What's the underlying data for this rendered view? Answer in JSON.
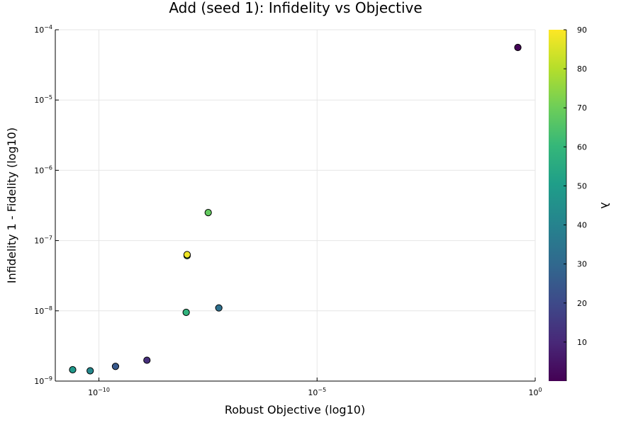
{
  "chart_data": {
    "type": "scatter",
    "title": "Add (seed 1): Infidelity vs Objective",
    "xlabel": "Robust Objective (log10)",
    "ylabel": "Infidelity 1 - Fidelity (log10)",
    "colorbar_label": "λ",
    "x_scale": "log10",
    "y_scale": "log10",
    "xlim_exp": [
      -11.0,
      0
    ],
    "ylim_exp": [
      -9,
      -4
    ],
    "x_ticks": [
      {
        "base": "10",
        "exp": "−10",
        "value": -10
      },
      {
        "base": "10",
        "exp": "−5",
        "value": -5
      },
      {
        "base": "10",
        "exp": "0",
        "value": 0
      }
    ],
    "y_ticks": [
      {
        "base": "10",
        "exp": "−9",
        "value": -9
      },
      {
        "base": "10",
        "exp": "−8",
        "value": -8
      },
      {
        "base": "10",
        "exp": "−7",
        "value": -7
      },
      {
        "base": "10",
        "exp": "−6",
        "value": -6
      },
      {
        "base": "10",
        "exp": "−5",
        "value": -5
      },
      {
        "base": "10",
        "exp": "−4",
        "value": -4
      }
    ],
    "colorbar_range": [
      0,
      90
    ],
    "colorbar_ticks": [
      "10",
      "20",
      "30",
      "40",
      "50",
      "60",
      "70",
      "80",
      "90"
    ],
    "colormap": [
      "#440154",
      "#482878",
      "#3e4989",
      "#31688e",
      "#26828e",
      "#1f9e89",
      "#35b779",
      "#6ece58",
      "#b5de2b",
      "#fde725"
    ],
    "grid": true,
    "legend": "none",
    "points": [
      {
        "x": 2.5e-11,
        "y": 1.45e-09,
        "lambda": 48
      },
      {
        "x": 6.3e-11,
        "y": 1.4e-09,
        "lambda": 42
      },
      {
        "x": 2.4e-10,
        "y": 1.62e-09,
        "lambda": 25
      },
      {
        "x": 1.26e-09,
        "y": 1.98e-09,
        "lambda": 12
      },
      {
        "x": 1e-08,
        "y": 9.5e-09,
        "lambda": 58
      },
      {
        "x": 5.6e-08,
        "y": 1.1e-08,
        "lambda": 33
      },
      {
        "x": 1.05e-08,
        "y": 6.1e-08,
        "lambda": 60
      },
      {
        "x": 1.05e-08,
        "y": 6.3e-08,
        "lambda": 88
      },
      {
        "x": 3.2e-08,
        "y": 2.5e-07,
        "lambda": 68
      },
      {
        "x": 0.4,
        "y": 5.6e-05,
        "lambda": 1
      }
    ]
  }
}
